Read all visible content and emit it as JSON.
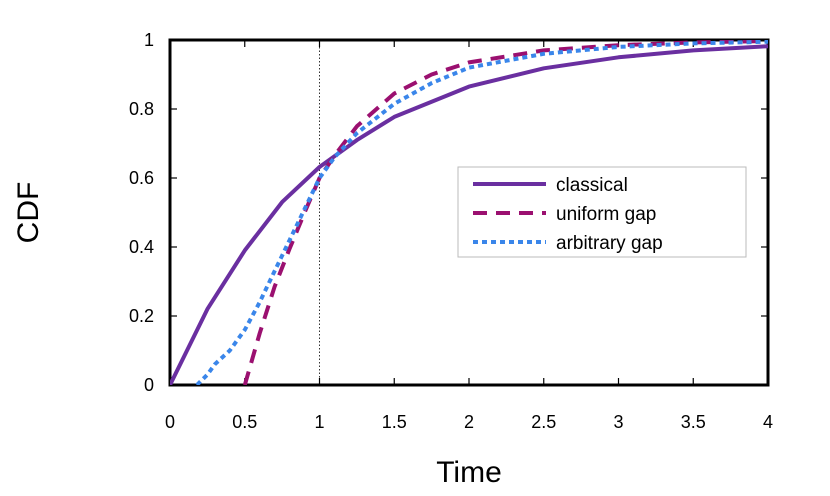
{
  "chart_data": {
    "type": "line",
    "title": "",
    "xlabel": "Time",
    "ylabel": "CDF",
    "xlim": [
      0,
      4
    ],
    "ylim": [
      0,
      1
    ],
    "x_ticks": [
      0,
      0.5,
      1,
      1.5,
      2,
      2.5,
      3,
      3.5,
      4
    ],
    "x_tick_labels": [
      "0",
      "0.5",
      "1",
      "1.5",
      "2",
      "2.5",
      "3",
      "3.5",
      "4"
    ],
    "y_ticks": [
      0,
      0.2,
      0.4,
      0.6,
      0.8,
      1
    ],
    "y_tick_labels": [
      "0",
      "0.2",
      "0.4",
      "0.6",
      "0.8",
      "1"
    ],
    "grid": false,
    "reference_line_x": 1,
    "legend_position": "right",
    "series": [
      {
        "name": "classical",
        "color": "#6a2fa0",
        "dash": "solid",
        "x": [
          0,
          0.25,
          0.5,
          0.75,
          1,
          1.25,
          1.5,
          2,
          2.5,
          3,
          3.5,
          4
        ],
        "y": [
          0,
          0.22,
          0.39,
          0.53,
          0.632,
          0.71,
          0.777,
          0.865,
          0.918,
          0.95,
          0.97,
          0.982
        ]
      },
      {
        "name": "uniform gap",
        "color": "#9b1070",
        "dash": "dashed",
        "x": [
          0.5,
          0.6,
          0.7,
          0.8,
          0.9,
          1,
          1.1,
          1.25,
          1.5,
          1.75,
          2,
          2.5,
          3,
          3.5,
          4
        ],
        "y": [
          0,
          0.15,
          0.285,
          0.395,
          0.5,
          0.6,
          0.665,
          0.75,
          0.845,
          0.9,
          0.935,
          0.97,
          0.985,
          0.993,
          0.997
        ]
      },
      {
        "name": "arbitrary gap",
        "color": "#3a86ea",
        "dash": "dotted",
        "x": [
          0.18,
          0.25,
          0.3,
          0.35,
          0.4,
          0.5,
          0.6,
          0.7,
          0.8,
          0.9,
          1,
          1.1,
          1.25,
          1.5,
          1.75,
          2,
          2.5,
          3,
          3.5,
          4
        ],
        "y": [
          0,
          0.03,
          0.06,
          0.08,
          0.1,
          0.16,
          0.24,
          0.33,
          0.42,
          0.51,
          0.6,
          0.66,
          0.73,
          0.815,
          0.875,
          0.92,
          0.96,
          0.98,
          0.99,
          0.995
        ]
      }
    ]
  }
}
